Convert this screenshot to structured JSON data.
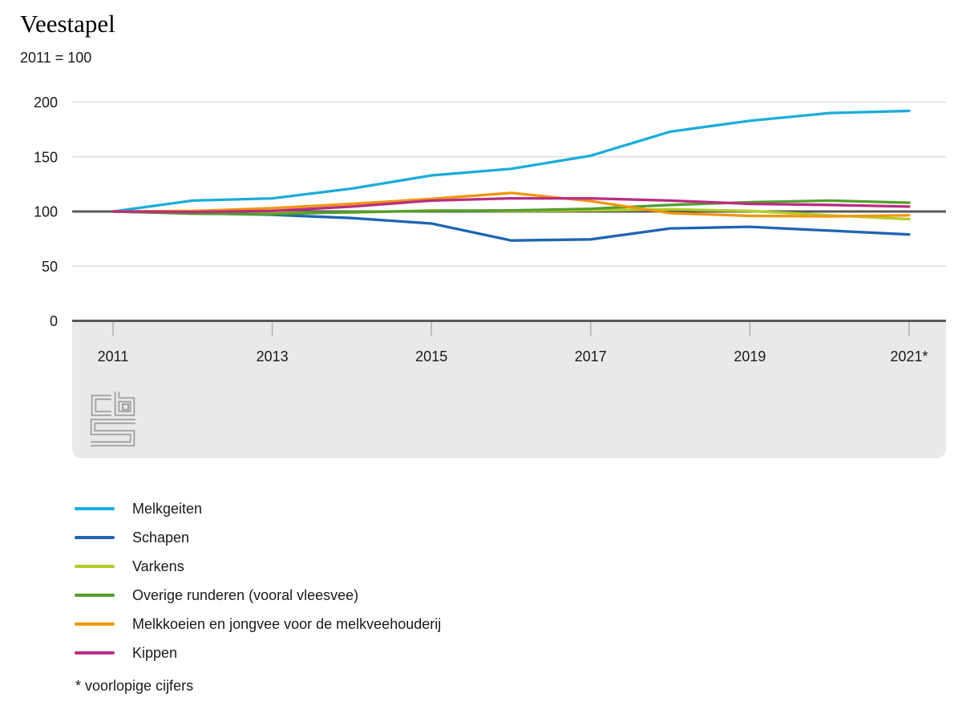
{
  "header": {
    "title": "Veestapel",
    "subtitle": "2011 = 100"
  },
  "colors": {
    "band": "#e9e9e9",
    "axis": "#595959",
    "gridline": "#d9d9d9",
    "tick": "#b3b3b3",
    "logo": "#9d9d9d",
    "text": "#1a1a1a"
  },
  "chart_data": {
    "type": "line",
    "title": "Veestapel",
    "subtitle": "2011 = 100",
    "x": [
      2011,
      2012,
      2013,
      2014,
      2015,
      2016,
      2017,
      2018,
      2019,
      2020,
      2021
    ],
    "x_tick_years": [
      2011,
      2013,
      2015,
      2017,
      2019,
      2021
    ],
    "x_tick_labels": [
      "2011",
      "2013",
      "2015",
      "2017",
      "2019",
      "2021*"
    ],
    "y_ticks": [
      0,
      50,
      100,
      150,
      200
    ],
    "ylim": [
      0,
      200
    ],
    "reference_line": 100,
    "grid": true,
    "legend_position": "bottom",
    "series": [
      {
        "name": "Melkgeiten",
        "color": "#1cacda",
        "values": [
          100,
          110,
          112,
          121,
          133,
          139,
          151,
          173,
          183,
          190,
          192
        ]
      },
      {
        "name": "Schapen",
        "color": "#1e65b2",
        "values": [
          100,
          98.5,
          97,
          94,
          89,
          73.5,
          74.5,
          84.5,
          86,
          82.5,
          79
        ]
      },
      {
        "name": "Varkens",
        "color": "#b2cd28",
        "values": [
          100,
          99,
          98.5,
          99,
          101,
          100.5,
          101,
          102,
          100.5,
          96.5,
          93
        ]
      },
      {
        "name": "Overige runderen (vooral vleesvee)",
        "color": "#529f2d",
        "values": [
          100,
          98,
          97.5,
          99.5,
          100.5,
          101,
          102.5,
          106,
          108.5,
          110,
          108
        ]
      },
      {
        "name": "Melkkoeien en jongvee voor de melkveehouderij",
        "color": "#f0960f",
        "values": [
          100,
          100.5,
          103,
          107,
          111.5,
          117,
          109.5,
          98.5,
          96,
          95.5,
          96.5
        ]
      },
      {
        "name": "Kippen",
        "color": "#b92d82",
        "values": [
          100,
          99.5,
          100.5,
          104.5,
          110,
          112,
          112,
          110,
          107,
          106,
          104.5
        ]
      }
    ],
    "footnote": "* voorlopige cijfers"
  }
}
